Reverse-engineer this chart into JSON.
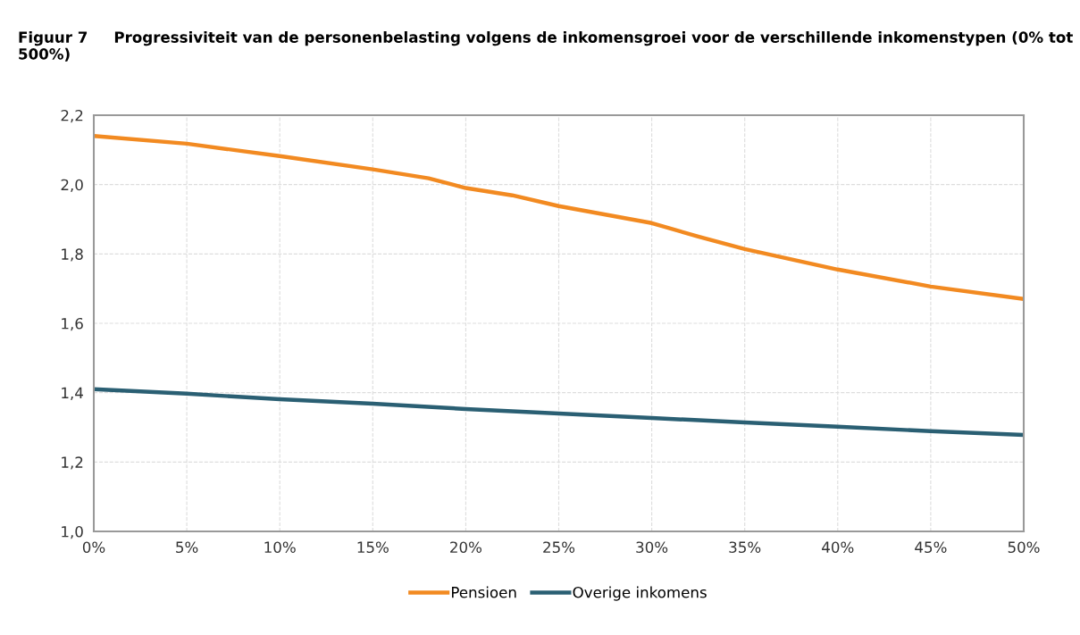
{
  "chart_data": {
    "type": "line",
    "title": "Figuur 7     Progressiviteit van de personenbelasting volgens de inkomensgroei voor de verschillende inkomenstypen (0% tot 500%)",
    "x": [
      0,
      5,
      10,
      15,
      18,
      20,
      22.5,
      25,
      30,
      32.5,
      35,
      40,
      45,
      50
    ],
    "series": [
      {
        "name": "Pensioen",
        "color": "#f28a21",
        "values": [
          2.14,
          2.118,
          2.082,
          2.044,
          2.018,
          1.99,
          1.969,
          1.938,
          1.889,
          1.85,
          1.814,
          1.755,
          1.706,
          1.67
        ]
      },
      {
        "name": "Overige inkomens",
        "color": "#2a5f73",
        "x": [
          0,
          5,
          10,
          15,
          20,
          25,
          30,
          35,
          40,
          45,
          50
        ],
        "values": [
          1.41,
          1.397,
          1.381,
          1.368,
          1.353,
          1.34,
          1.327,
          1.314,
          1.302,
          1.289,
          1.278
        ]
      }
    ],
    "xlim": [
      0,
      50
    ],
    "xticks": [
      {
        "value": 0,
        "label": "0%"
      },
      {
        "value": 5,
        "label": "5%"
      },
      {
        "value": 10,
        "label": "10%"
      },
      {
        "value": 15,
        "label": "15%"
      },
      {
        "value": 20,
        "label": "20%"
      },
      {
        "value": 25,
        "label": "25%"
      },
      {
        "value": 30,
        "label": "30%"
      },
      {
        "value": 35,
        "label": "35%"
      },
      {
        "value": 40,
        "label": "40%"
      },
      {
        "value": 45,
        "label": "45%"
      },
      {
        "value": 50,
        "label": "50%"
      }
    ],
    "ylim": [
      1.0,
      2.2
    ],
    "yticks": [
      {
        "value": 1.0,
        "label": "1,0"
      },
      {
        "value": 1.2,
        "label": "1,2"
      },
      {
        "value": 1.4,
        "label": "1,4"
      },
      {
        "value": 1.6,
        "label": "1,6"
      },
      {
        "value": 1.8,
        "label": "1,8"
      },
      {
        "value": 2.0,
        "label": "2,0"
      },
      {
        "value": 2.2,
        "label": "2,2"
      }
    ],
    "grid": true,
    "legend": "bottom",
    "marker": "none",
    "line_style": "solid"
  }
}
